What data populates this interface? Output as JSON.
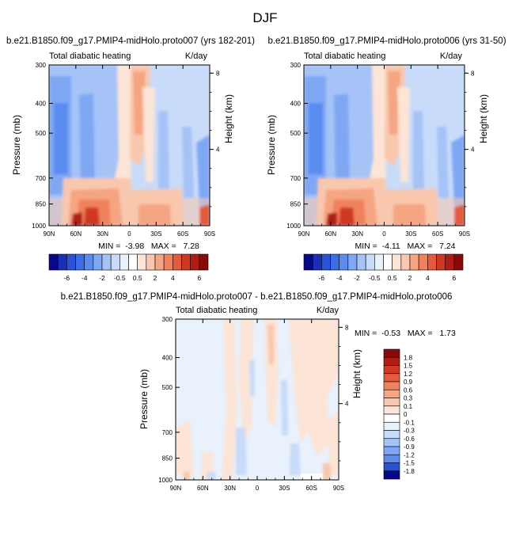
{
  "figure_title": "DJF",
  "chart_data": [
    {
      "type": "heatmap",
      "id": "p1",
      "title": "b.e21.B1850.f09_g17.PMIP4-midHolo.proto007 (yrs 182-201)",
      "left_label": "Total diabatic heating",
      "right_label": "K/day",
      "ylabel": "Pressure (mb)",
      "y2label": "Height (km)",
      "x_ticks": [
        "90N",
        "60N",
        "30N",
        "0",
        "30S",
        "60S",
        "90S"
      ],
      "y_ticks": [
        "300",
        "400",
        "500",
        "700",
        "850",
        "1000"
      ],
      "y_tick_values": [
        300,
        400,
        500,
        700,
        850,
        1000
      ],
      "ylim": [
        300,
        1000
      ],
      "y2_ticks": [
        "8",
        "4"
      ],
      "y2_tick_values_km": [
        8,
        4
      ],
      "xlim": [
        90,
        -90
      ],
      "stats_text": "MIN =  -3.98   MAX =   7.28",
      "min": -3.98,
      "max": 7.28
    },
    {
      "type": "heatmap",
      "id": "p2",
      "title": "b.e21.B1850.f09_g17.PMIP4-midHolo.proto006 (yrs 31-50)",
      "left_label": "Total diabatic heating",
      "right_label": "K/day",
      "ylabel": "Pressure (mb)",
      "y2label": "Height (km)",
      "x_ticks": [
        "90N",
        "60N",
        "30N",
        "0",
        "30S",
        "60S",
        "90S"
      ],
      "y_ticks": [
        "300",
        "400",
        "500",
        "700",
        "850",
        "1000"
      ],
      "y_tick_values": [
        300,
        400,
        500,
        700,
        850,
        1000
      ],
      "ylim": [
        300,
        1000
      ],
      "y2_ticks": [
        "8",
        "4"
      ],
      "y2_tick_values_km": [
        8,
        4
      ],
      "xlim": [
        90,
        -90
      ],
      "stats_text": "MIN =  -4.11   MAX =   7.24",
      "min": -4.11,
      "max": 7.24
    },
    {
      "type": "heatmap",
      "id": "p3",
      "title": "b.e21.B1850.f09_g17.PMIP4-midHolo.proto007 - b.e21.B1850.f09_g17.PMIP4-midHolo.proto006",
      "left_label": "Total diabatic heating",
      "right_label": "K/day",
      "ylabel": "Pressure (mb)",
      "y2label": "Height (km)",
      "x_ticks": [
        "90N",
        "60N",
        "30N",
        "0",
        "30S",
        "60S",
        "90S"
      ],
      "y_ticks": [
        "300",
        "400",
        "500",
        "700",
        "850",
        "1000"
      ],
      "y_tick_values": [
        300,
        400,
        500,
        700,
        850,
        1000
      ],
      "ylim": [
        300,
        1000
      ],
      "y2_ticks": [
        "8",
        "4"
      ],
      "y2_tick_values_km": [
        8,
        4
      ],
      "xlim": [
        90,
        -90
      ],
      "stats_text": "MIN =  -0.53   MAX =   1.73",
      "min": -0.53,
      "max": 1.73
    }
  ],
  "colorbars": {
    "top": {
      "levels": [
        "-6",
        "-4",
        "-2",
        "-0.5",
        "0.5",
        "2",
        "4",
        "6"
      ],
      "colors": [
        "#08088c",
        "#1a2fb8",
        "#2952d8",
        "#3a6ee8",
        "#5a8cf0",
        "#7fa8f4",
        "#a5c3f6",
        "#c8dbf9",
        "#e8f1fc",
        "#ffffff",
        "#fce4d6",
        "#f9c7ad",
        "#f5a582",
        "#ef825c",
        "#e55a3a",
        "#d03823",
        "#b01c14",
        "#8a0a0a"
      ]
    },
    "diff": {
      "labels": [
        "1.8",
        "1.5",
        "1.2",
        "0.9",
        "0.6",
        "0.3",
        "0.1",
        "0",
        "-0.1",
        "-0.3",
        "-0.6",
        "-0.9",
        "-1.2",
        "-1.5",
        "-1.8"
      ],
      "colors": [
        "#8a0a0a",
        "#b01c14",
        "#d03823",
        "#e55a3a",
        "#ef825c",
        "#f5a582",
        "#f9c7ad",
        "#fce4d6",
        "#ffffff",
        "#e8f1fc",
        "#c8dbf9",
        "#a5c3f6",
        "#7fa8f4",
        "#5a8cf0",
        "#2952d8",
        "#08088c"
      ]
    }
  }
}
